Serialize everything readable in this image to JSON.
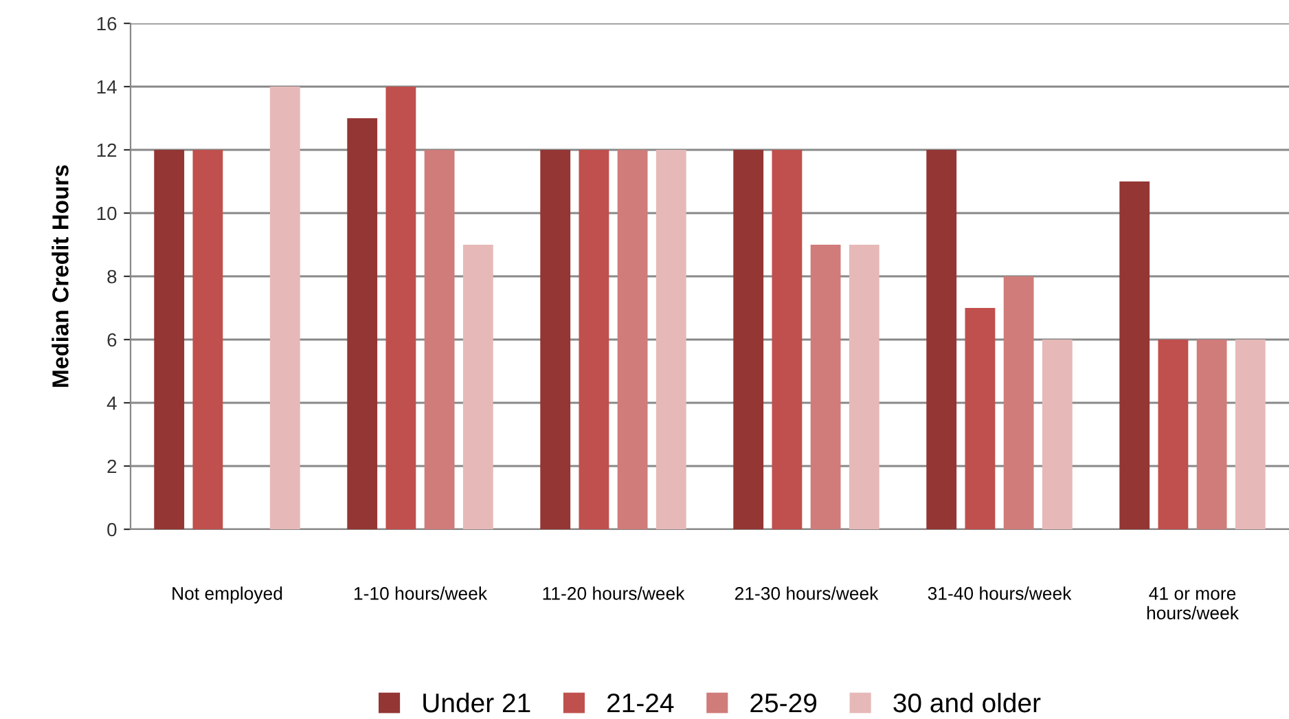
{
  "chart_data": {
    "type": "bar",
    "ylabel": "Median Credit Hours",
    "categories": [
      "Not employed",
      "1-10 hours/week",
      "11-20 hours/week",
      "21-30 hours/week",
      "31-40 hours/week",
      "41 or more\nhours/week"
    ],
    "series": [
      {
        "name": "Under 21",
        "color": "#943634",
        "values": [
          12,
          13,
          12,
          12,
          12,
          11
        ]
      },
      {
        "name": "21-24",
        "color": "#c0504d",
        "values": [
          12,
          14,
          12,
          12,
          7,
          6
        ]
      },
      {
        "name": "25-29",
        "color": "#d07c7a",
        "values": [
          null,
          12,
          12,
          9,
          8,
          6
        ]
      },
      {
        "name": "30 and older",
        "color": "#e6b9b8",
        "values": [
          14,
          9,
          12,
          9,
          6,
          6
        ]
      }
    ],
    "ylim": [
      0,
      16
    ],
    "yticks": [
      0,
      2,
      4,
      6,
      8,
      10,
      12,
      14,
      16
    ],
    "grid": "y",
    "legend": "bottom"
  }
}
